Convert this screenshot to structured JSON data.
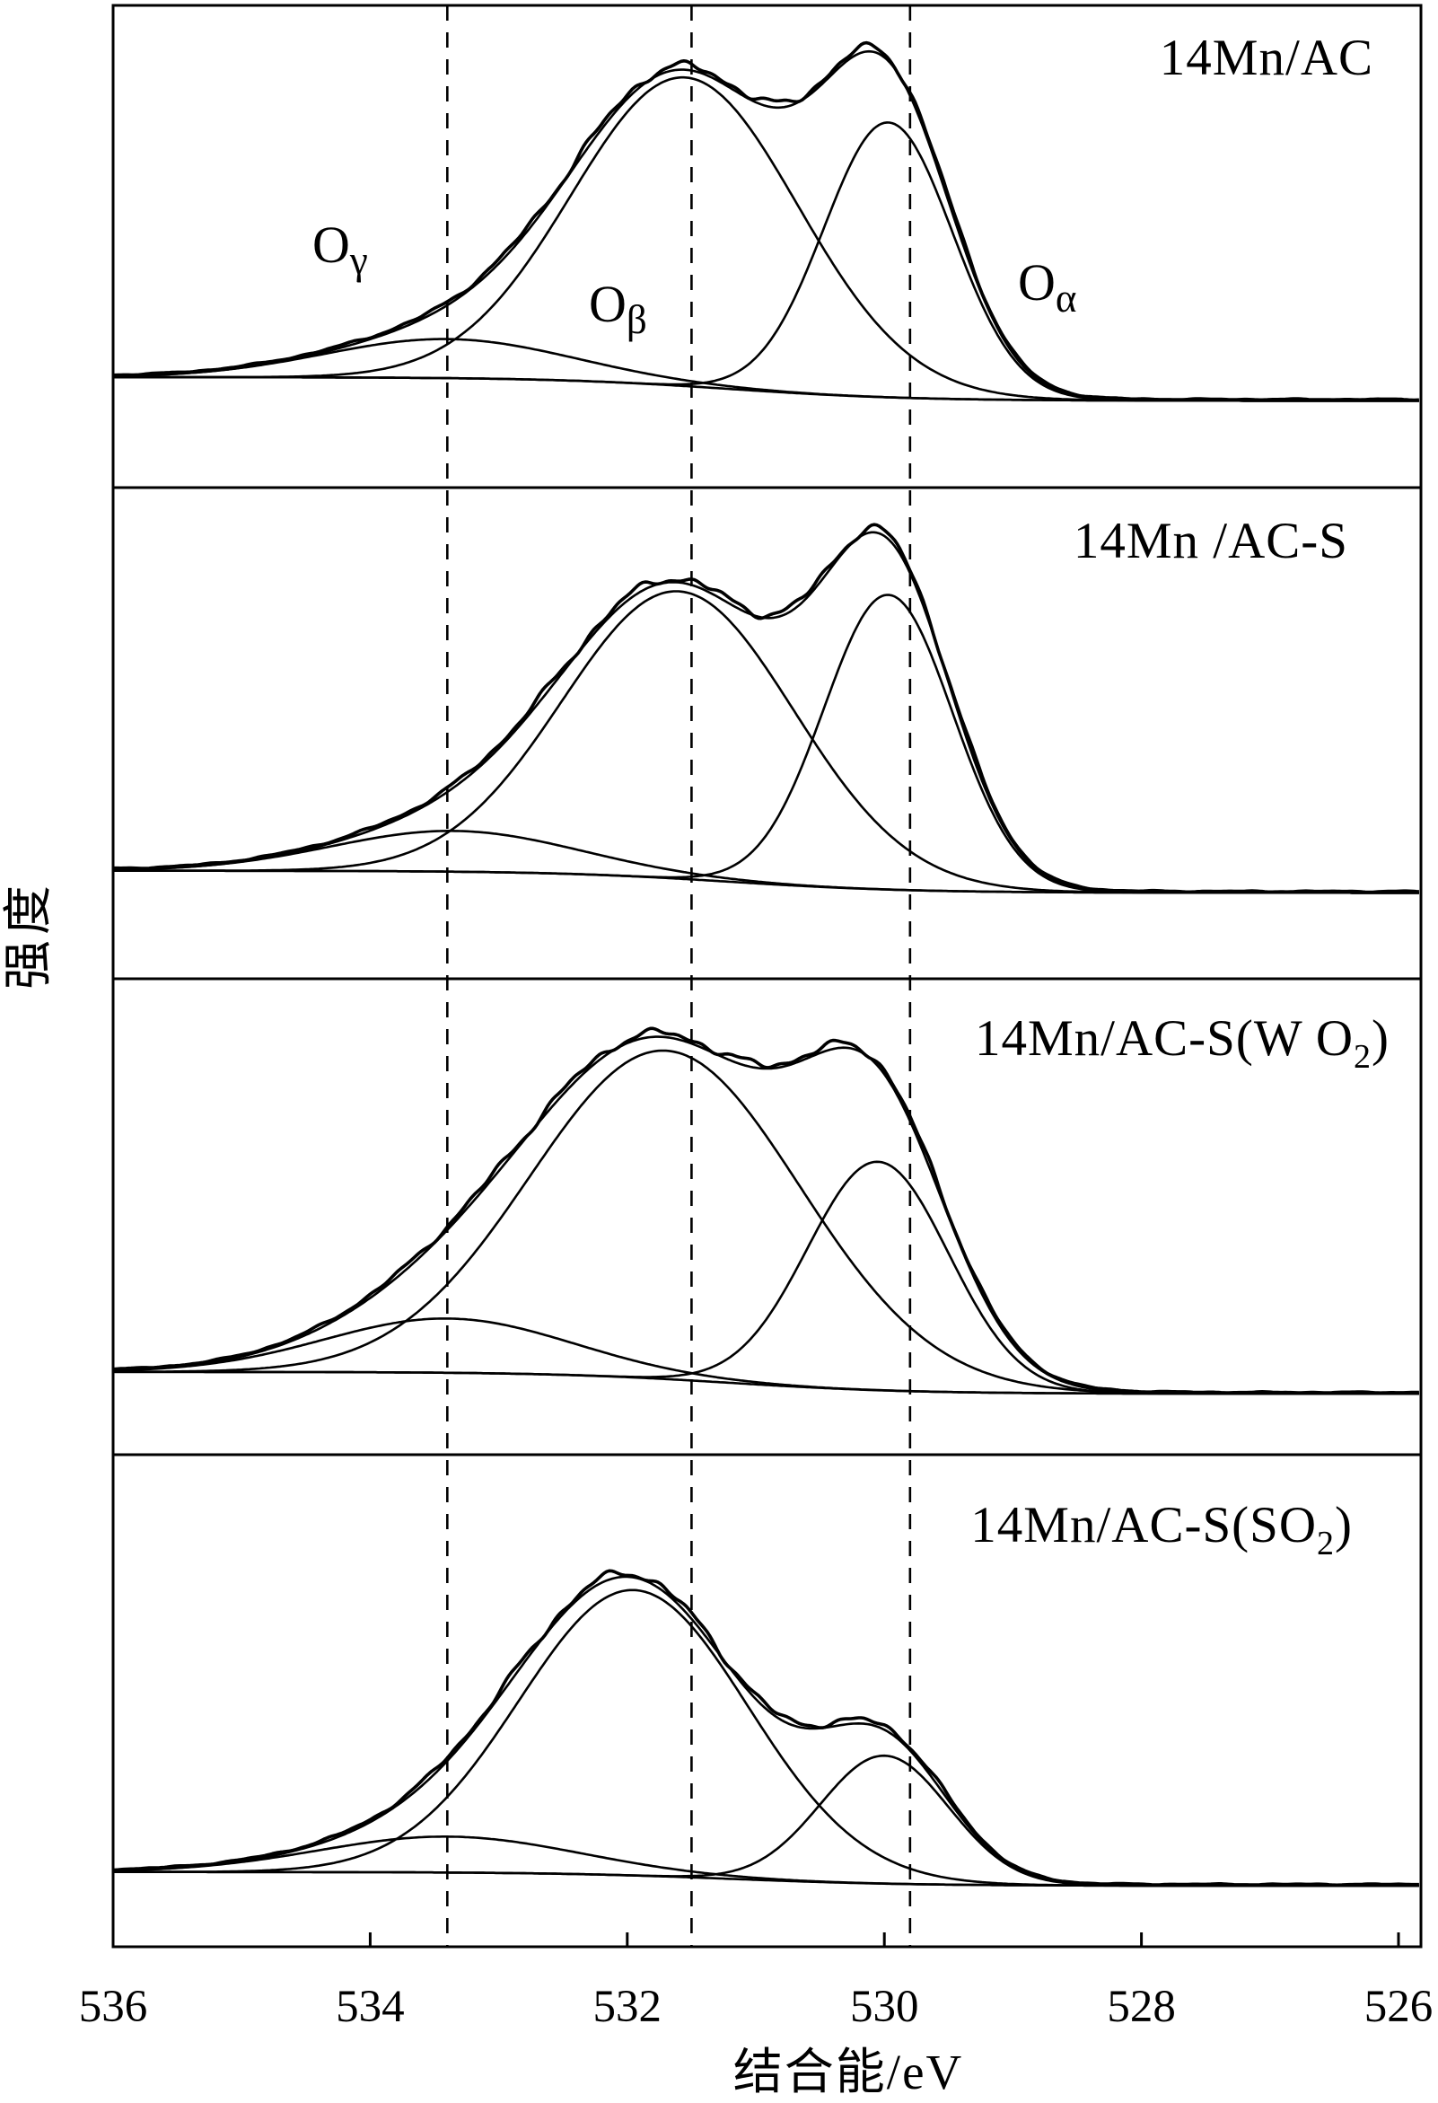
{
  "figure": {
    "x_axis_title": "结合能/eV",
    "y_axis_title": "强度",
    "panel_labels": [
      {
        "prefix": "14Mn/AC",
        "sub": "",
        "suffix": ""
      },
      {
        "prefix": "14Mn /AC-S",
        "sub": "",
        "suffix": ""
      },
      {
        "prefix": "14Mn/AC-S(W O",
        "sub": "2",
        "suffix": ")"
      },
      {
        "prefix": "14Mn/AC-S(SO",
        "sub": "2",
        "suffix": ")"
      }
    ],
    "peak_annotations": [
      {
        "main": "O",
        "sub": "γ"
      },
      {
        "main": "O",
        "sub": "β"
      },
      {
        "main": "O",
        "sub": "α"
      }
    ]
  },
  "colors": {
    "foreground": "#000000",
    "background": "#ffffff"
  },
  "chart_data": {
    "type": "line",
    "x_axis": {
      "title": "结合能/eV",
      "unit": "eV",
      "range": [
        536,
        526
      ],
      "direction": "decreasing",
      "ticks": [
        536,
        534,
        532,
        530,
        528,
        526
      ]
    },
    "y_axis": {
      "title": "强度",
      "ticks": [],
      "note_arbitrary_units": true
    },
    "dashed_guides_eV": [
      533.4,
      531.5,
      529.8
    ],
    "peak_annotation_positions_eV": {
      "O_gamma": 534.2,
      "O_beta": 532.0,
      "O_alpha": 528.7
    },
    "panels": [
      {
        "label": "14Mn/AC",
        "baseline_frac": {
          "left": 0.771,
          "right": 0.82
        },
        "peaks": [
          {
            "name": "O_gamma",
            "center_eV": 533.4,
            "sigma_eV": 0.95,
            "height_frac": 0.081
          },
          {
            "name": "O_beta",
            "center_eV": 531.55,
            "sigma_eV": 0.88,
            "height_frac": 0.64
          },
          {
            "name": "O_alpha",
            "center_eV": 529.97,
            "sigma_eV": 0.5,
            "height_frac": 0.57
          }
        ]
      },
      {
        "label": "14Mn /AC-S",
        "baseline_frac": {
          "left": 0.78,
          "right": 0.825
        },
        "peaks": [
          {
            "name": "O_gamma",
            "center_eV": 533.35,
            "sigma_eV": 0.95,
            "height_frac": 0.083
          },
          {
            "name": "O_beta",
            "center_eV": 531.6,
            "sigma_eV": 0.9,
            "height_frac": 0.585
          },
          {
            "name": "O_alpha",
            "center_eV": 529.97,
            "sigma_eV": 0.5,
            "height_frac": 0.6
          }
        ]
      },
      {
        "label": "14Mn/AC-S(W O2)",
        "baseline_frac": {
          "left": 0.826,
          "right": 0.872
        },
        "peaks": [
          {
            "name": "O_gamma",
            "center_eV": 533.4,
            "sigma_eV": 0.95,
            "height_frac": 0.114
          },
          {
            "name": "O_beta",
            "center_eV": 531.7,
            "sigma_eV": 1.05,
            "height_frac": 0.69
          },
          {
            "name": "O_alpha",
            "center_eV": 530.05,
            "sigma_eV": 0.55,
            "height_frac": 0.48
          }
        ]
      },
      {
        "label": "14Mn/AC-S(SO2)",
        "baseline_frac": {
          "left": 0.848,
          "right": 0.876
        },
        "peaks": [
          {
            "name": "O_gamma",
            "center_eV": 533.4,
            "sigma_eV": 1.0,
            "height_frac": 0.073
          },
          {
            "name": "O_beta",
            "center_eV": 531.95,
            "sigma_eV": 0.89,
            "height_frac": 0.58
          },
          {
            "name": "O_alpha",
            "center_eV": 530.0,
            "sigma_eV": 0.5,
            "height_frac": 0.26
          }
        ]
      }
    ]
  }
}
